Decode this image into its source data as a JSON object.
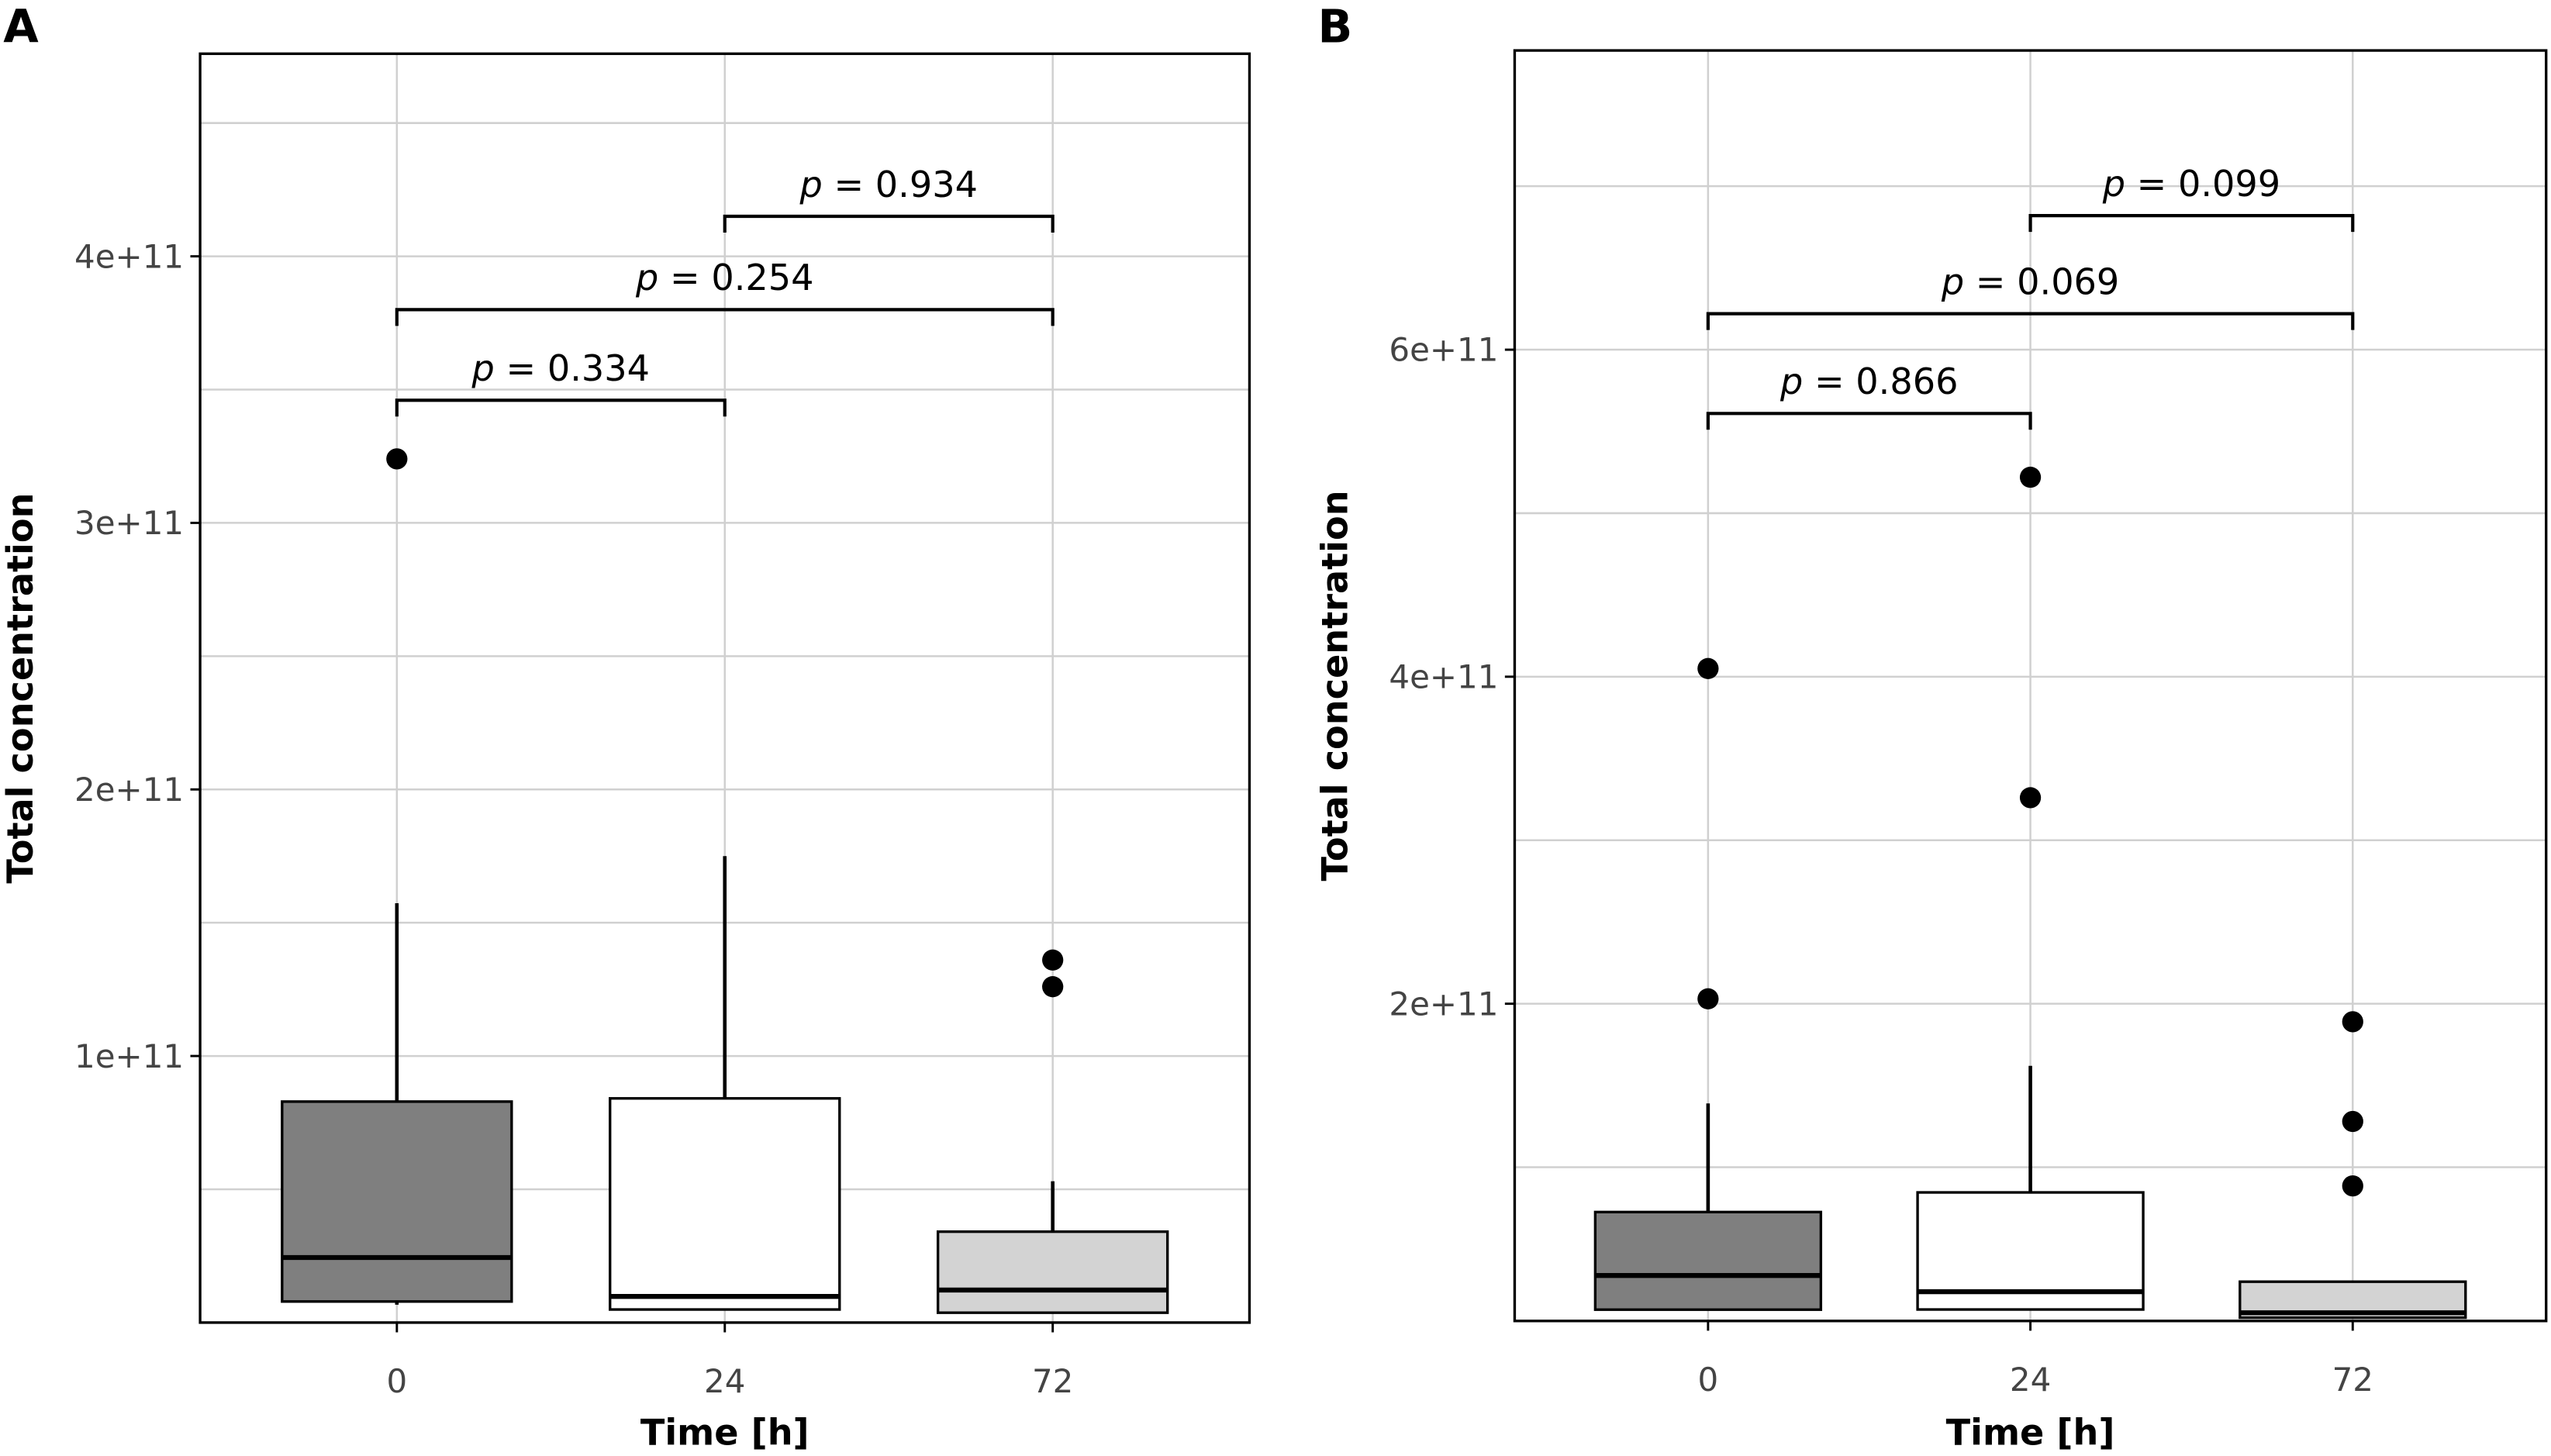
{
  "chart_data": [
    {
      "type": "box",
      "panel_label": "A",
      "xlabel": "Time [h]",
      "ylabel": "Total concentration",
      "categories": [
        "0",
        "24",
        "72"
      ],
      "yticks": [
        100000000000.0,
        200000000000.0,
        300000000000.0,
        400000000000.0
      ],
      "ytick_labels": [
        "1e+11",
        "2e+11",
        "3e+11",
        "4e+11"
      ],
      "ylim": [
        0,
        476000000000.0
      ],
      "grid": true,
      "boxes": [
        {
          "category": "0",
          "fill": "#7f7f7f",
          "whisker_low": 6700000000.0,
          "q1": 7900000000.0,
          "median": 24400000000.0,
          "q3": 82900000000.0,
          "whisker_high": 157300000000.0,
          "outliers": [
            324000000000.0
          ]
        },
        {
          "category": "24",
          "fill": "#ffffff",
          "whisker_low": 4900000000.0,
          "q1": 4900000000.0,
          "median": 9800000000.0,
          "q3": 84100000000.0,
          "whisker_high": 175000000000.0,
          "outliers": []
        },
        {
          "category": "72",
          "fill": "#d3d3d3",
          "whisker_low": 3700000000.0,
          "q1": 3700000000.0,
          "median": 12200000000.0,
          "q3": 34100000000.0,
          "whisker_high": 53000000000.0,
          "outliers": [
            136000000000.0,
            126000000000.0
          ]
        }
      ],
      "comparisons": [
        {
          "from": "0",
          "to": "24",
          "label": "p = 0.334",
          "p": "0.334",
          "y": 346000000000.0
        },
        {
          "from": "0",
          "to": "72",
          "label": "p = 0.254",
          "p": "0.254",
          "y": 380000000000.0
        },
        {
          "from": "24",
          "to": "72",
          "label": "p = 0.934",
          "p": "0.934",
          "y": 415000000000.0
        }
      ]
    },
    {
      "type": "box",
      "panel_label": "B",
      "xlabel": "Time [h]",
      "ylabel": "Total concentration",
      "categories": [
        "0",
        "24",
        "72"
      ],
      "yticks": [
        200000000000.0,
        400000000000.0,
        600000000000.0
      ],
      "ytick_labels": [
        "2e+11",
        "4e+11",
        "6e+11"
      ],
      "ylim": [
        6000000000.0,
        783000000000.0
      ],
      "grid": true,
      "boxes": [
        {
          "category": "0",
          "fill": "#7f7f7f",
          "whisker_low": 12900000000.0,
          "q1": 12900000000.0,
          "median": 33800000000.0,
          "q3": 72600000000.0,
          "whisker_high": 139000000000.0,
          "outliers": [
            405000000000.0,
            203000000000.0
          ]
        },
        {
          "category": "24",
          "fill": "#ffffff",
          "whisker_low": 13000000000.0,
          "q1": 13000000000.0,
          "median": 23900000000.0,
          "q3": 84600000000.0,
          "whisker_high": 162000000000.0,
          "outliers": [
            522000000000.0,
            326000000000.0
          ]
        },
        {
          "category": "72",
          "fill": "#d3d3d3",
          "whisker_low": 8000000000.0,
          "q1": 8000000000.0,
          "median": 11000000000.0,
          "q3": 30000000000.0,
          "whisker_high": 30000000000.0,
          "outliers": [
            189000000000.0,
            128000000000.0,
            88600000000.0
          ]
        }
      ],
      "comparisons": [
        {
          "from": "0",
          "to": "24",
          "label": "p = 0.866",
          "p": "0.866",
          "y": 561000000000.0
        },
        {
          "from": "0",
          "to": "72",
          "label": "p = 0.069",
          "p": "0.069",
          "y": 622000000000.0
        },
        {
          "from": "24",
          "to": "72",
          "label": "p = 0.099",
          "p": "0.099",
          "y": 682000000000.0
        }
      ]
    }
  ]
}
